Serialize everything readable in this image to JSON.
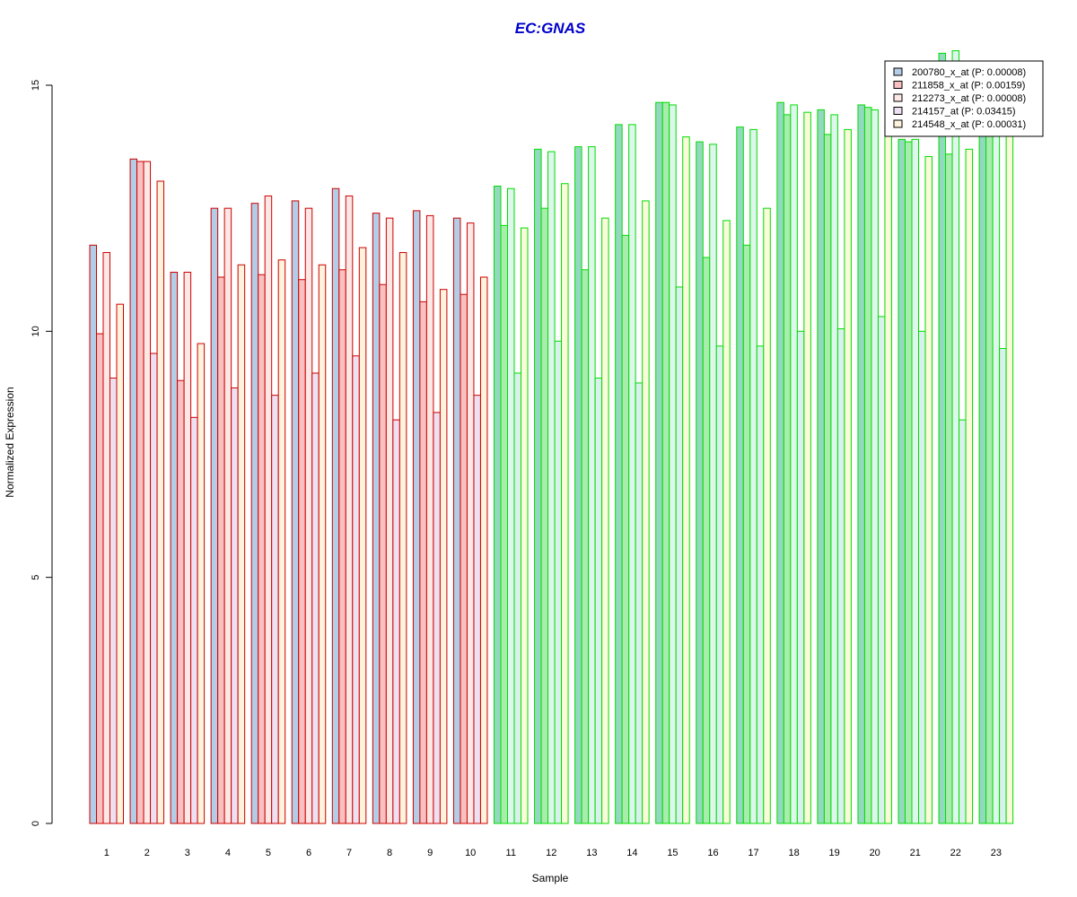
{
  "chart_data": {
    "type": "bar",
    "title": "EC:GNAS",
    "xlabel": "Sample",
    "ylabel": "Normalized Expression",
    "ylim": [
      0,
      15
    ],
    "yticks": [
      0,
      5,
      10,
      15
    ],
    "grid": false,
    "legend_position": "top-right",
    "categories": [
      "1",
      "2",
      "3",
      "4",
      "5",
      "6",
      "7",
      "8",
      "9",
      "10",
      "11",
      "12",
      "13",
      "14",
      "15",
      "16",
      "17",
      "18",
      "19",
      "20",
      "21",
      "22",
      "23"
    ],
    "group_border_colors": {
      "1-10": "#cc0000",
      "11-23": "#00dd00"
    },
    "series": [
      {
        "name": "200780_x_at (P: 0.00008)",
        "fill_red_group": "#b4cde6",
        "fill_green_group": "#93d9c0",
        "values": [
          11.75,
          13.5,
          11.2,
          12.5,
          12.6,
          12.65,
          12.9,
          12.4,
          12.45,
          12.3,
          12.95,
          13.7,
          13.75,
          14.2,
          14.65,
          13.85,
          14.15,
          14.65,
          14.5,
          14.6,
          13.9,
          15.65,
          14.2
        ]
      },
      {
        "name": "211858_x_at (P: 0.00159)",
        "fill_red_group": "#f8c0c0",
        "fill_green_group": "#a8ecae",
        "values": [
          9.95,
          13.45,
          9.0,
          11.1,
          11.15,
          11.05,
          11.25,
          10.95,
          10.6,
          10.75,
          12.15,
          12.5,
          11.25,
          11.95,
          14.65,
          11.5,
          11.75,
          14.4,
          14.0,
          14.55,
          13.85,
          13.6,
          14.15
        ]
      },
      {
        "name": "212273_x_at (P: 0.00008)",
        "fill_red_group": "#fde8e6",
        "fill_green_group": "#ddf7ec",
        "values": [
          11.6,
          13.45,
          11.2,
          12.5,
          12.75,
          12.5,
          12.75,
          12.3,
          12.35,
          12.2,
          12.9,
          13.65,
          13.75,
          14.2,
          14.6,
          13.8,
          14.1,
          14.6,
          14.4,
          14.5,
          13.9,
          15.7,
          14.15
        ]
      },
      {
        "name": "214157_at (P: 0.03415)",
        "fill_red_group": "#ece0f2",
        "fill_green_group": "#d9f1ec",
        "values": [
          9.05,
          9.55,
          8.25,
          8.85,
          8.7,
          9.15,
          9.5,
          8.2,
          8.35,
          8.7,
          9.15,
          9.8,
          9.05,
          8.95,
          10.9,
          9.7,
          9.7,
          10.0,
          10.05,
          10.3,
          10.0,
          8.2,
          9.65
        ]
      },
      {
        "name": "214548_x_at (P: 0.00031)",
        "fill_red_group": "#fff3dc",
        "fill_green_group": "#fafbd8",
        "values": [
          10.55,
          13.05,
          9.75,
          11.35,
          11.45,
          11.35,
          11.7,
          11.6,
          10.85,
          11.1,
          12.1,
          13.0,
          12.3,
          12.65,
          13.95,
          12.25,
          12.5,
          14.45,
          14.1,
          14.2,
          13.55,
          13.7,
          14.1
        ]
      }
    ]
  }
}
